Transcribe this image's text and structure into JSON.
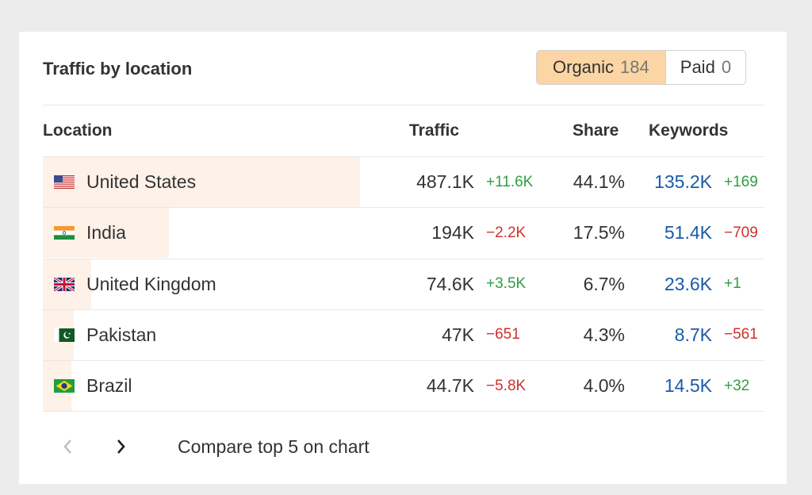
{
  "widget": {
    "title": "Traffic by location",
    "toggle": {
      "organic_label": "Organic",
      "organic_count": "184",
      "paid_label": "Paid",
      "paid_count": "0"
    }
  },
  "table": {
    "headers": {
      "location": "Location",
      "traffic": "Traffic",
      "share": "Share",
      "keywords": "Keywords"
    },
    "rows": [
      {
        "country": "United States",
        "flag": "us-flag-icon",
        "traffic": "487.1K",
        "traffic_delta": "+11.6K",
        "share": "44.1%",
        "share_value": 44.1,
        "keywords": "135.2K",
        "keywords_delta": "+169"
      },
      {
        "country": "India",
        "flag": "india-flag-icon",
        "traffic": "194K",
        "traffic_delta": "−2.2K",
        "share": "17.5%",
        "share_value": 17.5,
        "keywords": "51.4K",
        "keywords_delta": "−709"
      },
      {
        "country": "United Kingdom",
        "flag": "uk-flag-icon",
        "traffic": "74.6K",
        "traffic_delta": "+3.5K",
        "share": "6.7%",
        "share_value": 6.7,
        "keywords": "23.6K",
        "keywords_delta": "+1"
      },
      {
        "country": "Pakistan",
        "flag": "pakistan-flag-icon",
        "traffic": "47K",
        "traffic_delta": "−651",
        "share": "4.3%",
        "share_value": 4.3,
        "keywords": "8.7K",
        "keywords_delta": "−561"
      },
      {
        "country": "Brazil",
        "flag": "brazil-flag-icon",
        "traffic": "44.7K",
        "traffic_delta": "−5.8K",
        "share": "4.0%",
        "share_value": 4.0,
        "keywords": "14.5K",
        "keywords_delta": "+32"
      }
    ]
  },
  "footer": {
    "prev_icon": "chevron-left-icon",
    "next_icon": "chevron-right-icon",
    "compare_label": "Compare top 5 on chart"
  },
  "colors": {
    "share_bar": "#fdf1e8",
    "positive": "#2f9e44",
    "negative": "#d0312d",
    "link": "#1a5aa8",
    "toggle_active": "#fcd5a4"
  }
}
